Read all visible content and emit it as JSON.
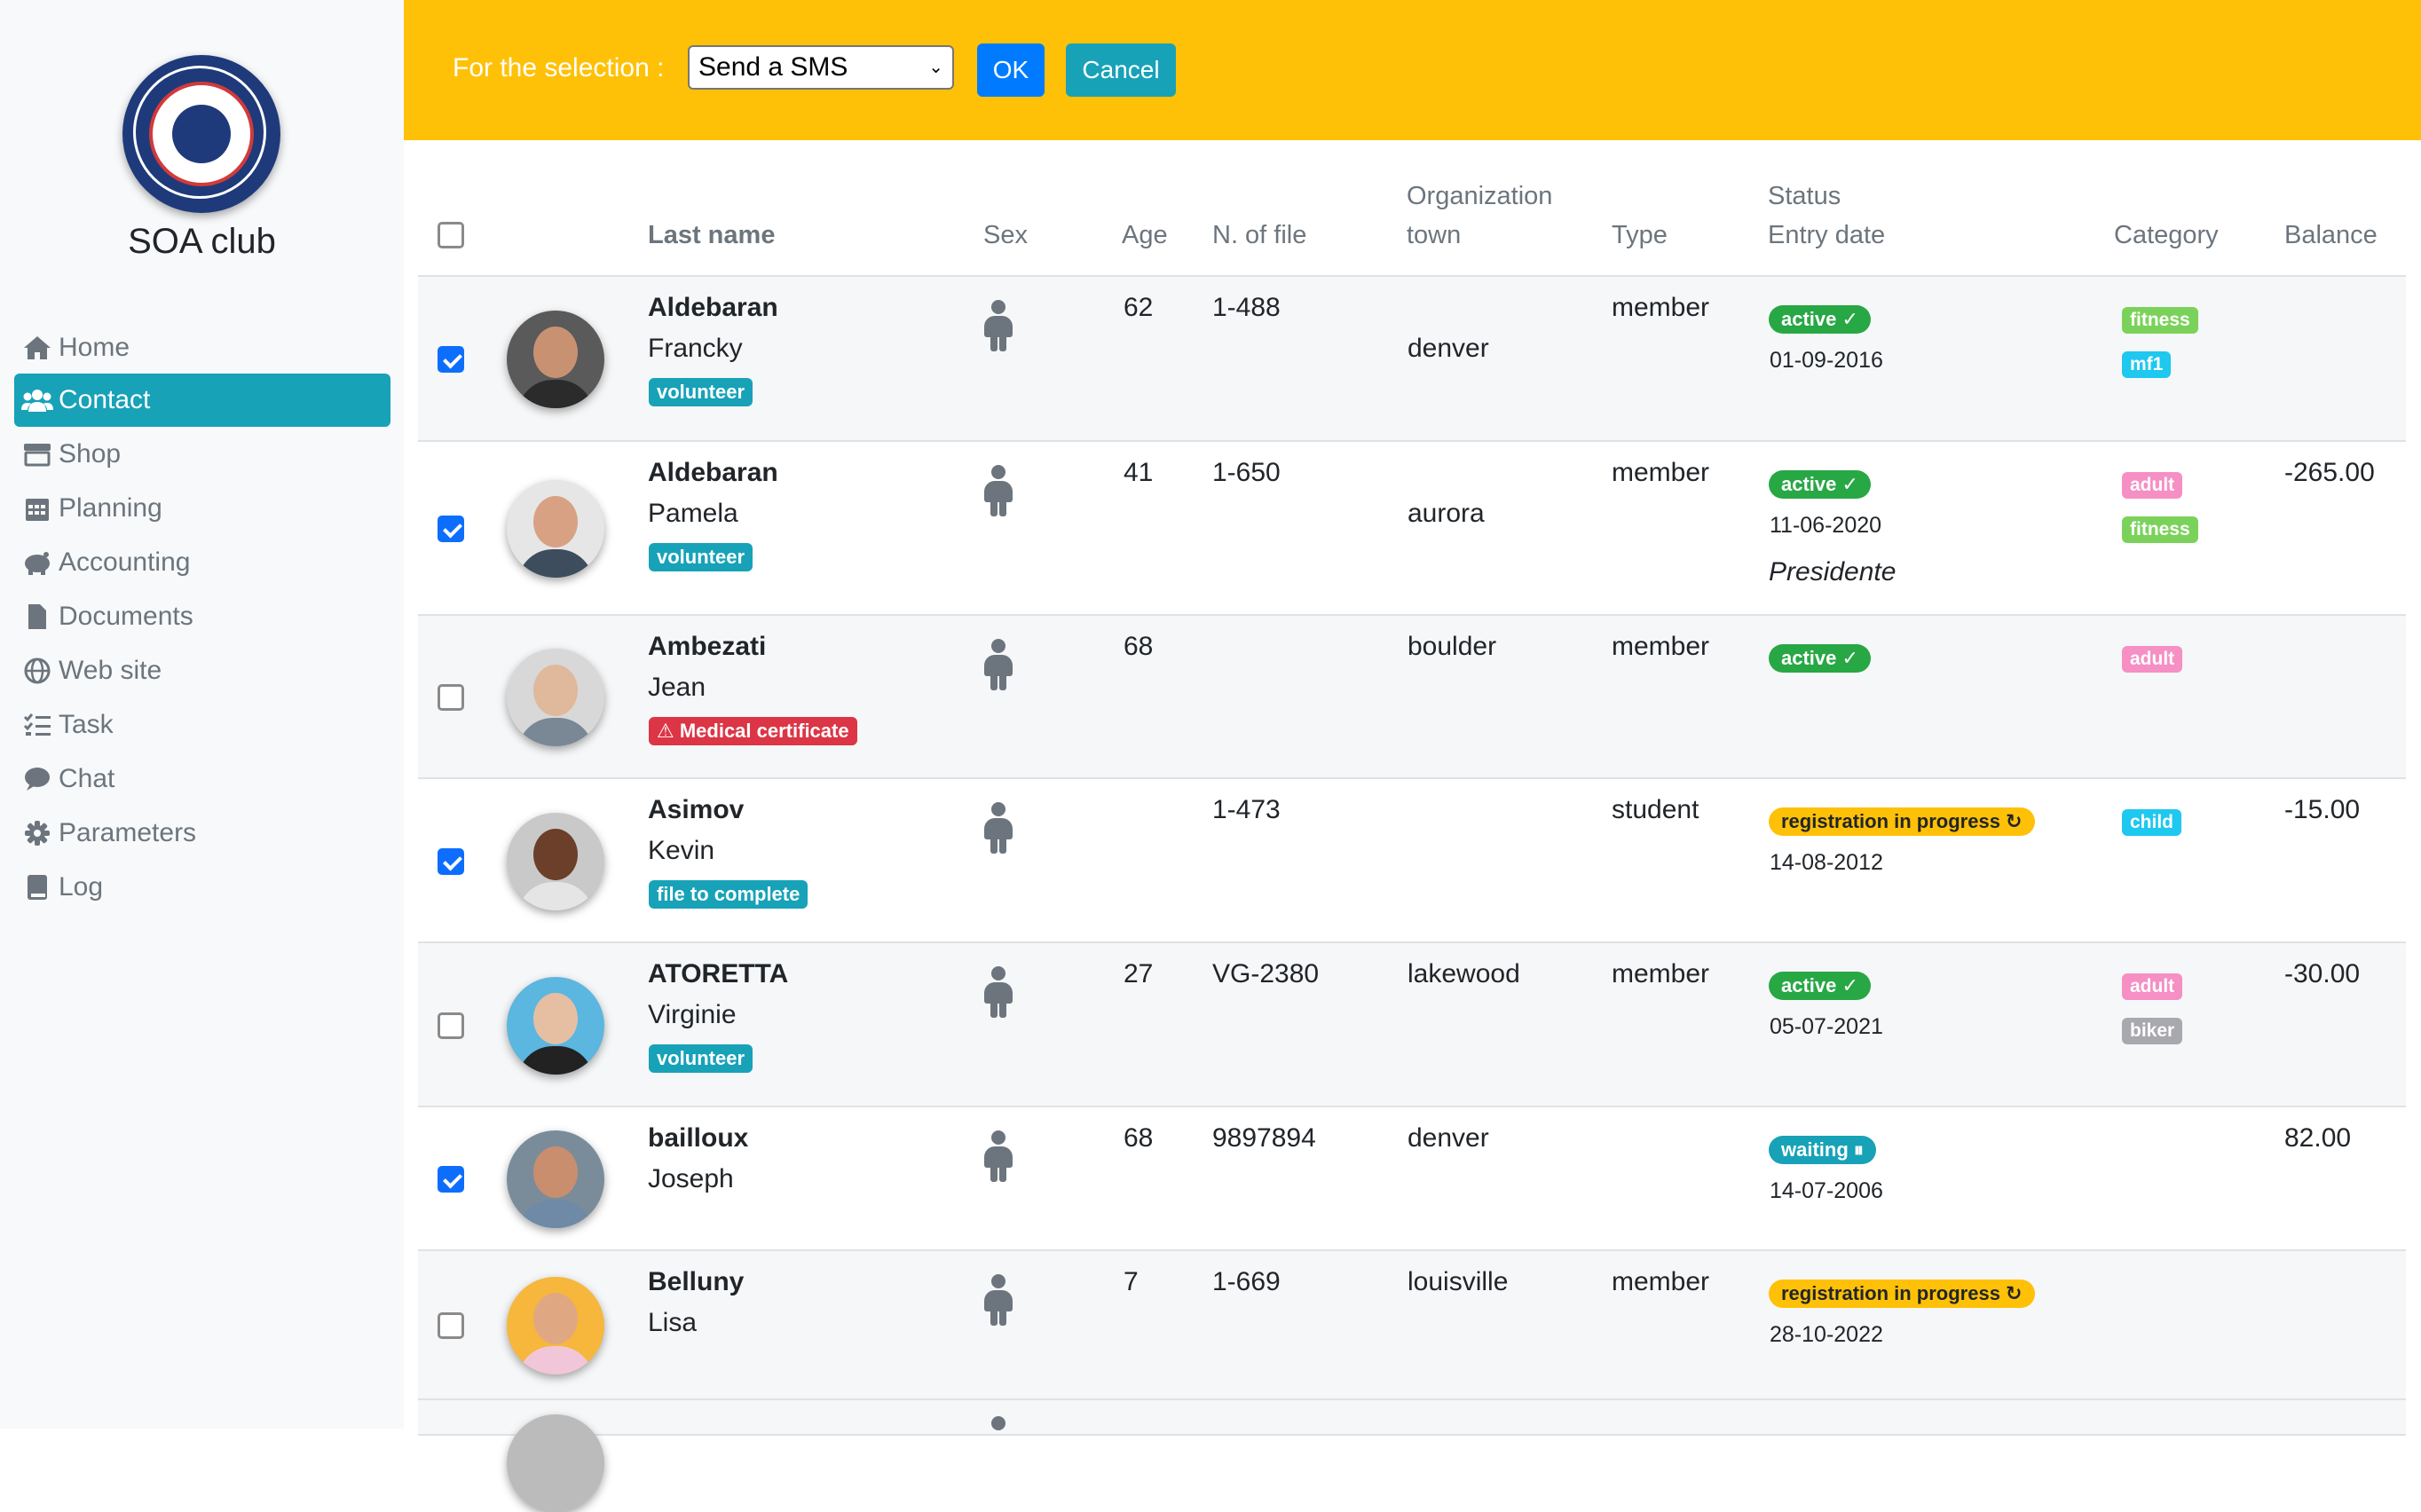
{
  "sidebar": {
    "club_name": "SOA club",
    "logo_icon": "club-logo",
    "items": [
      {
        "label": "Home",
        "icon": "home-icon"
      },
      {
        "label": "Contact",
        "icon": "users-icon",
        "active": true
      },
      {
        "label": "Shop",
        "icon": "shop-icon"
      },
      {
        "label": "Planning",
        "icon": "calendar-icon"
      },
      {
        "label": "Accounting",
        "icon": "piggy-bank-icon"
      },
      {
        "label": "Documents",
        "icon": "file-icon"
      },
      {
        "label": "Web site",
        "icon": "globe-icon"
      },
      {
        "label": "Task",
        "icon": "task-list-icon"
      },
      {
        "label": "Chat",
        "icon": "chat-icon"
      },
      {
        "label": "Parameters",
        "icon": "gear-icon"
      },
      {
        "label": "Log",
        "icon": "book-icon"
      }
    ]
  },
  "topbar": {
    "selection_label": "For the selection :",
    "action_value": "Send a SMS",
    "ok_label": "OK",
    "cancel_label": "Cancel"
  },
  "table": {
    "headers": {
      "last_name": "Last name",
      "sex": "Sex",
      "age": "Age",
      "file": "N. of file",
      "org1": "Organization",
      "org2": "town",
      "type": "Type",
      "status1": "Status",
      "status2": "Entry date",
      "category": "Category",
      "balance": "Balance"
    },
    "rows": [
      {
        "checked": true,
        "last": "Aldebaran",
        "first": "Francky",
        "tag": "volunteer",
        "tag_color": "teal",
        "age": "62",
        "file": "1-488",
        "town": "denver",
        "type": "member",
        "status": "active ✓",
        "status_color": "green",
        "date": "01-09-2016",
        "note": "",
        "categories": [
          {
            "label": "fitness",
            "color": "lgreen"
          },
          {
            "label": "mf1",
            "color": "cyan"
          }
        ],
        "balance": ""
      },
      {
        "checked": true,
        "last": "Aldebaran",
        "first": "Pamela",
        "tag": "volunteer",
        "tag_color": "teal",
        "age": "41",
        "file": "1-650",
        "town": "aurora",
        "type": "member",
        "status": "active ✓",
        "status_color": "green",
        "date": "11-06-2020",
        "note": "Presidente",
        "categories": [
          {
            "label": "adult",
            "color": "pink"
          },
          {
            "label": "fitness",
            "color": "lgreen"
          }
        ],
        "balance": "-265.00"
      },
      {
        "checked": false,
        "last": "Ambezati",
        "first": "Jean",
        "tag": "⚠ Medical certificate",
        "tag_color": "red",
        "age": "68",
        "file": "",
        "town": "boulder",
        "type": "member",
        "status": "active ✓",
        "status_color": "green",
        "date": "",
        "note": "",
        "categories": [
          {
            "label": "adult",
            "color": "pink"
          }
        ],
        "balance": ""
      },
      {
        "checked": true,
        "last": "Asimov",
        "first": "Kevin",
        "tag": "file to complete",
        "tag_color": "teal",
        "age": "",
        "file": "1-473",
        "town": "",
        "type": "student",
        "status": "registration in progress ↻",
        "status_color": "yellow",
        "date": "14-08-2012",
        "note": "",
        "categories": [
          {
            "label": "child",
            "color": "cyan"
          }
        ],
        "balance": "-15.00"
      },
      {
        "checked": false,
        "last": "ATORETTA",
        "first": "Virginie",
        "tag": "volunteer",
        "tag_color": "teal",
        "age": "27",
        "file": "VG-2380",
        "town": "lakewood",
        "type": "member",
        "status": "active ✓",
        "status_color": "green",
        "date": "05-07-2021",
        "note": "",
        "categories": [
          {
            "label": "adult",
            "color": "pink"
          },
          {
            "label": "biker",
            "color": "gray"
          }
        ],
        "balance": "-30.00"
      },
      {
        "checked": true,
        "last": "bailloux",
        "first": "Joseph",
        "tag": "",
        "tag_color": "",
        "age": "68",
        "file": "9897894",
        "town": "denver",
        "type": "",
        "status": "waiting ⏸",
        "status_color": "teal",
        "date": "14-07-2006",
        "note": "",
        "categories": [],
        "balance": "82.00"
      },
      {
        "checked": false,
        "last": "Belluny",
        "first": "Lisa",
        "tag": "",
        "tag_color": "",
        "age": "7",
        "file": "1-669",
        "town": "louisville",
        "type": "member",
        "status": "registration in progress ↻",
        "status_color": "yellow",
        "date": "28-10-2022",
        "note": "",
        "categories": [],
        "balance": ""
      }
    ]
  },
  "colors": {
    "accent_teal": "#17a2b8",
    "topbar_yellow": "#ffc107",
    "primary_blue": "#007bff"
  }
}
